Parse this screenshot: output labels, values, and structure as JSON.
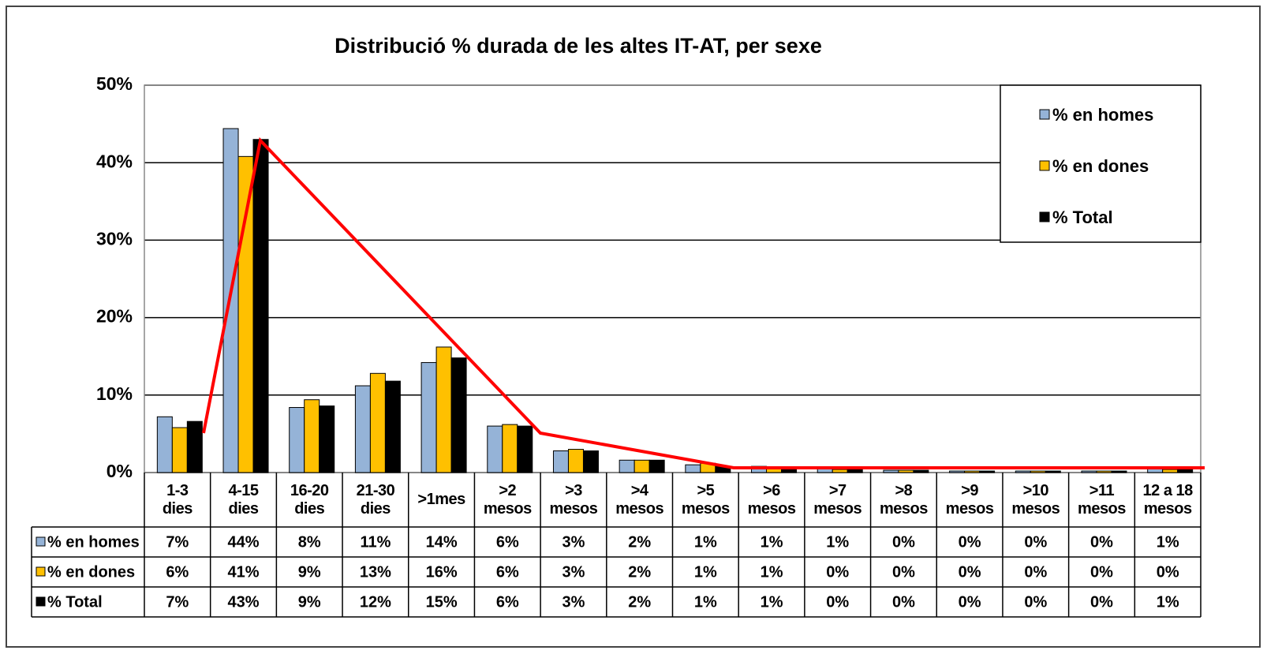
{
  "chart_data": {
    "type": "bar",
    "title": "Distribució % durada de les altes IT-AT, per sexe",
    "categories": [
      "1-3\ndies",
      "4-15\ndies",
      "16-20\ndies",
      "21-30\ndies",
      ">1mes",
      ">2\nmesos",
      ">3\nmesos",
      ">4\nmesos",
      ">5\nmesos",
      ">6\nmesos",
      ">7\nmesos",
      ">8\nmesos",
      ">9\nmesos",
      ">10\nmesos",
      ">11\nmesos",
      "12 a 18\nmesos"
    ],
    "series": [
      {
        "name": "% en homes",
        "color": "#95b3d7",
        "values": [
          7.2,
          44.4,
          8.4,
          11.2,
          14.2,
          6.0,
          2.8,
          1.6,
          1.0,
          0.8,
          0.6,
          0.3,
          0.2,
          0.2,
          0.2,
          0.6
        ],
        "value_labels": [
          "7%",
          "44%",
          "8%",
          "11%",
          "14%",
          "6%",
          "3%",
          "2%",
          "1%",
          "1%",
          "1%",
          "0%",
          "0%",
          "0%",
          "0%",
          "1%"
        ]
      },
      {
        "name": "% en dones",
        "color": "#ffc000",
        "values": [
          5.8,
          40.8,
          9.4,
          12.8,
          16.2,
          6.2,
          3.0,
          1.6,
          1.2,
          0.6,
          0.4,
          0.3,
          0.2,
          0.2,
          0.2,
          0.4
        ],
        "value_labels": [
          "6%",
          "41%",
          "9%",
          "13%",
          "16%",
          "6%",
          "3%",
          "2%",
          "1%",
          "1%",
          "0%",
          "0%",
          "0%",
          "0%",
          "0%",
          "0%"
        ]
      },
      {
        "name": "% Total",
        "color": "#000000",
        "values": [
          6.6,
          43.0,
          8.6,
          11.8,
          14.8,
          6.0,
          2.8,
          1.6,
          0.8,
          0.6,
          0.4,
          0.3,
          0.2,
          0.2,
          0.2,
          0.6
        ],
        "value_labels": [
          "7%",
          "43%",
          "9%",
          "12%",
          "15%",
          "6%",
          "3%",
          "2%",
          "1%",
          "1%",
          "0%",
          "0%",
          "0%",
          "0%",
          "0%",
          "1%"
        ]
      }
    ],
    "ylim": [
      0,
      50
    ],
    "yticks": [
      {
        "value": 0,
        "label": "0%"
      },
      {
        "value": 10,
        "label": "10%"
      },
      {
        "value": 20,
        "label": "20%"
      },
      {
        "value": 30,
        "label": "30%"
      },
      {
        "value": 40,
        "label": "40%"
      },
      {
        "value": 50,
        "label": "50%"
      }
    ],
    "grid": true,
    "legend": "upper right"
  }
}
